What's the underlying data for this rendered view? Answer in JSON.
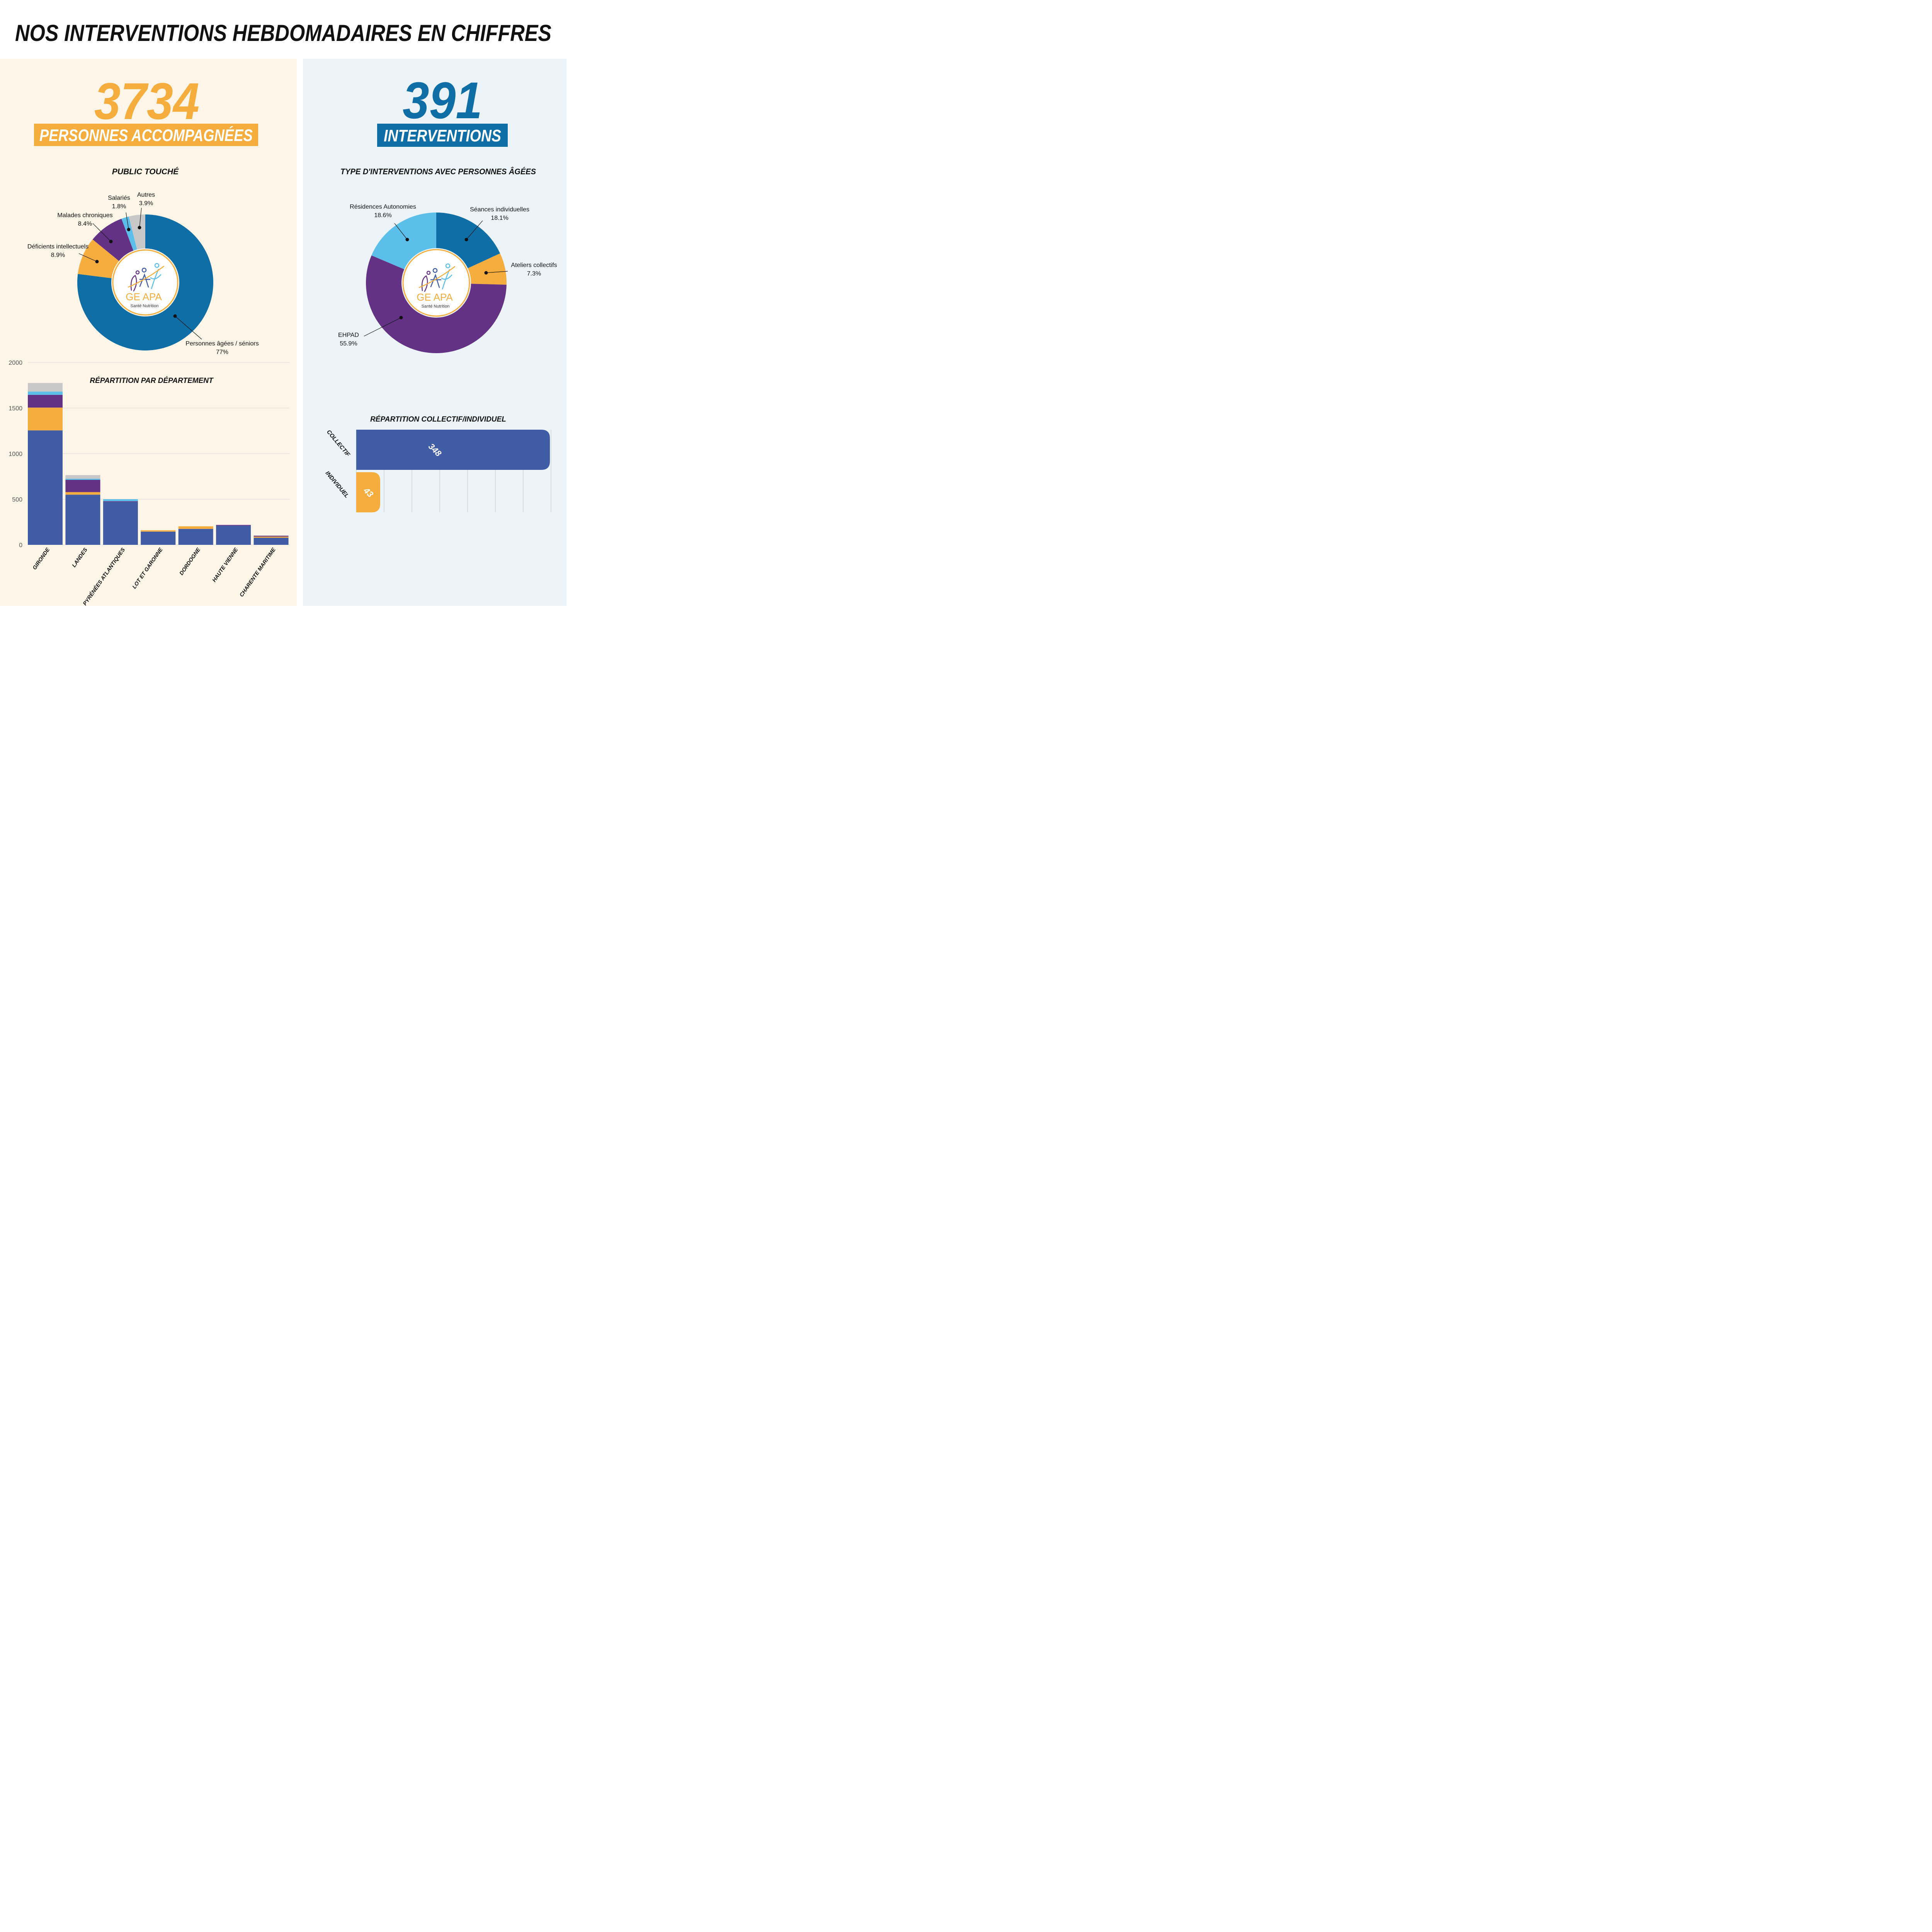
{
  "header": {
    "title": "NOS INTERVENTIONS HEBDOMADAIRES EN CHIFFRES"
  },
  "colors": {
    "dark_blue": "#0e6ea5",
    "light_blue": "#5bbfea",
    "orange": "#f5ae3d",
    "purple": "#633285",
    "grey": "#c8c8c8",
    "indigo": "#3f5ca5",
    "left_bg": "#fdf5e8",
    "right_bg": "#ecf4f9"
  },
  "left": {
    "big_number": "3734",
    "banner": "PERSONNES ACCOMPAGNÉES",
    "pie_title": "PUBLIC TOUCHÉ",
    "bar_title": "RÉPARTITION PAR DÉPARTEMENT"
  },
  "right": {
    "big_number": "391",
    "banner": "INTERVENTIONS",
    "pie_title": "TYPE D'INTERVENTIONS AVEC PERSONNES ÂGÉES",
    "hbar_title": "RÉPARTITION COLLECTIF/INDIVIDUEL"
  },
  "logo": {
    "main": "GE APA",
    "sub": "Santé Nutrition"
  },
  "chart_data": [
    {
      "type": "pie",
      "title": "PUBLIC TOUCHÉ",
      "slices": [
        {
          "label": "Personnes âgées / séniors",
          "value": 77,
          "display": "77%",
          "color": "#0e6ea5"
        },
        {
          "label": "Déficients intellectuels",
          "value": 8.9,
          "display": "8.9%",
          "color": "#f5ae3d"
        },
        {
          "label": "Malades chroniques",
          "value": 8.4,
          "display": "8.4%",
          "color": "#633285"
        },
        {
          "label": "Salariés",
          "value": 1.8,
          "display": "1.8%",
          "color": "#5bbfea"
        },
        {
          "label": "Autres",
          "value": 3.9,
          "display": "3.9%",
          "color": "#c8c8c8"
        }
      ]
    },
    {
      "type": "pie",
      "title": "TYPE D'INTERVENTIONS AVEC PERSONNES ÂGÉES",
      "slices": [
        {
          "label": "Séances individuelles",
          "value": 18.1,
          "display": "18.1%",
          "color": "#0e6ea5"
        },
        {
          "label": "Ateliers collectifs",
          "value": 7.3,
          "display": "7.3%",
          "color": "#f5ae3d"
        },
        {
          "label": "EHPAD",
          "value": 55.9,
          "display": "55.9%",
          "color": "#633285"
        },
        {
          "label": "Résidences Autonomies",
          "value": 18.6,
          "display": "18.6%",
          "color": "#5bbfea"
        }
      ]
    },
    {
      "type": "bar",
      "stacked": true,
      "title": "RÉPARTITION PAR DÉPARTEMENT",
      "categories": [
        "GIRONDE",
        "LANDES",
        "PYRÉNÉES ATLANTIQUES",
        "LOT ET GARONNE",
        "DORDOGNE",
        "HAUTE VIENNE",
        "CHARENTE MARITIME"
      ],
      "ylim": [
        0,
        2000
      ],
      "yticks": [
        "0",
        "500",
        "1000",
        "1500",
        "2000"
      ],
      "grid": true,
      "series": [
        {
          "color": "#3f5ca5",
          "values": [
            1255,
            550,
            470,
            145,
            175,
            210,
            78
          ]
        },
        {
          "color": "#f5ae3d",
          "values": [
            250,
            28,
            0,
            15,
            28,
            0,
            12
          ]
        },
        {
          "color": "#633285",
          "values": [
            140,
            135,
            8,
            0,
            0,
            8,
            10
          ]
        },
        {
          "color": "#5bbfea",
          "values": [
            35,
            12,
            22,
            0,
            0,
            0,
            0
          ]
        },
        {
          "color": "#c8c8c8",
          "values": [
            95,
            40,
            0,
            0,
            0,
            0,
            0
          ]
        }
      ]
    },
    {
      "type": "bar",
      "orientation": "horizontal",
      "title": "RÉPARTITION COLLECTIF/INDIVIDUEL",
      "categories": [
        "COLLECTIF",
        "INDIVIDUEL"
      ],
      "values": [
        348,
        43
      ],
      "value_labels": [
        "348",
        "43"
      ],
      "colors": [
        "#3f5ca5",
        "#f5ae3d"
      ],
      "xlim": [
        0,
        350
      ]
    }
  ]
}
